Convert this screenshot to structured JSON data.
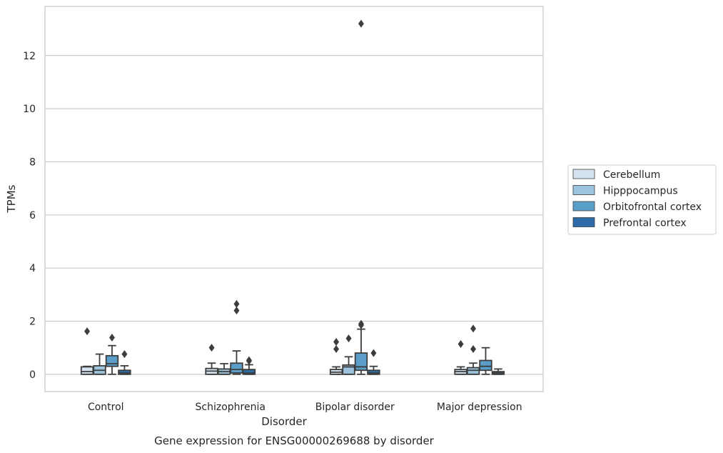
{
  "chart_data": {
    "type": "box",
    "title": "Gene expression for ENSG00000269688 by disorder",
    "xlabel": "Disorder",
    "ylabel": "TPMs",
    "ylim": [
      -0.65,
      13.85
    ],
    "yticks": [
      0,
      2,
      4,
      6,
      8,
      10,
      12
    ],
    "grid": "horizontal",
    "legend_position": "right",
    "categories": [
      "Control",
      "Schizophrenia",
      "Bipolar disorder",
      "Major depression"
    ],
    "series": [
      {
        "name": "Cerebellum",
        "color": "#d4e2ef",
        "boxes": [
          {
            "whislo": 0.0,
            "q1": 0.0,
            "med": 0.1,
            "q3": 0.28,
            "whishi": 0.3,
            "fliers": [
              1.62
            ]
          },
          {
            "whislo": 0.0,
            "q1": 0.0,
            "med": 0.12,
            "q3": 0.22,
            "whishi": 0.42,
            "fliers": [
              1.0
            ]
          },
          {
            "whislo": 0.0,
            "q1": 0.0,
            "med": 0.08,
            "q3": 0.18,
            "whishi": 0.28,
            "fliers": [
              0.95,
              1.22
            ]
          },
          {
            "whislo": 0.0,
            "q1": 0.0,
            "med": 0.1,
            "q3": 0.18,
            "whishi": 0.28,
            "fliers": [
              1.14
            ]
          }
        ]
      },
      {
        "name": "Hipppocampus",
        "color": "#9cc4de",
        "boxes": [
          {
            "whislo": 0.0,
            "q1": 0.0,
            "med": 0.15,
            "q3": 0.32,
            "whishi": 0.76,
            "fliers": []
          },
          {
            "whislo": 0.0,
            "q1": 0.0,
            "med": 0.1,
            "q3": 0.2,
            "whishi": 0.4,
            "fliers": []
          },
          {
            "whislo": 0.0,
            "q1": 0.0,
            "med": 0.28,
            "q3": 0.35,
            "whishi": 0.66,
            "fliers": [
              1.35
            ]
          },
          {
            "whislo": 0.0,
            "q1": 0.0,
            "med": 0.15,
            "q3": 0.25,
            "whishi": 0.42,
            "fliers": [
              0.95,
              1.72
            ]
          }
        ]
      },
      {
        "name": "Orbitofrontal cortex",
        "color": "#5a9ec9",
        "boxes": [
          {
            "whislo": 0.0,
            "q1": 0.3,
            "med": 0.4,
            "q3": 0.7,
            "whishi": 1.08,
            "fliers": [
              1.38
            ]
          },
          {
            "whislo": 0.0,
            "q1": 0.05,
            "med": 0.18,
            "q3": 0.42,
            "whishi": 0.88,
            "fliers": [
              2.4,
              2.65
            ]
          },
          {
            "whislo": 0.0,
            "q1": 0.15,
            "med": 0.28,
            "q3": 0.8,
            "whishi": 1.7,
            "fliers": [
              1.85,
              1.9,
              13.2
            ]
          },
          {
            "whislo": 0.0,
            "q1": 0.15,
            "med": 0.3,
            "q3": 0.52,
            "whishi": 1.0,
            "fliers": []
          }
        ]
      },
      {
        "name": "Prefrontal cortex",
        "color": "#2c6ba7",
        "boxes": [
          {
            "whislo": 0.0,
            "q1": 0.0,
            "med": 0.05,
            "q3": 0.15,
            "whishi": 0.32,
            "fliers": [
              0.76
            ]
          },
          {
            "whislo": 0.0,
            "q1": 0.0,
            "med": 0.05,
            "q3": 0.18,
            "whishi": 0.36,
            "fliers": [
              0.5,
              0.53
            ]
          },
          {
            "whislo": 0.0,
            "q1": 0.0,
            "med": 0.05,
            "q3": 0.15,
            "whishi": 0.3,
            "fliers": [
              0.8
            ]
          },
          {
            "whislo": 0.0,
            "q1": 0.0,
            "med": 0.05,
            "q3": 0.1,
            "whishi": 0.2,
            "fliers": []
          }
        ]
      }
    ]
  }
}
